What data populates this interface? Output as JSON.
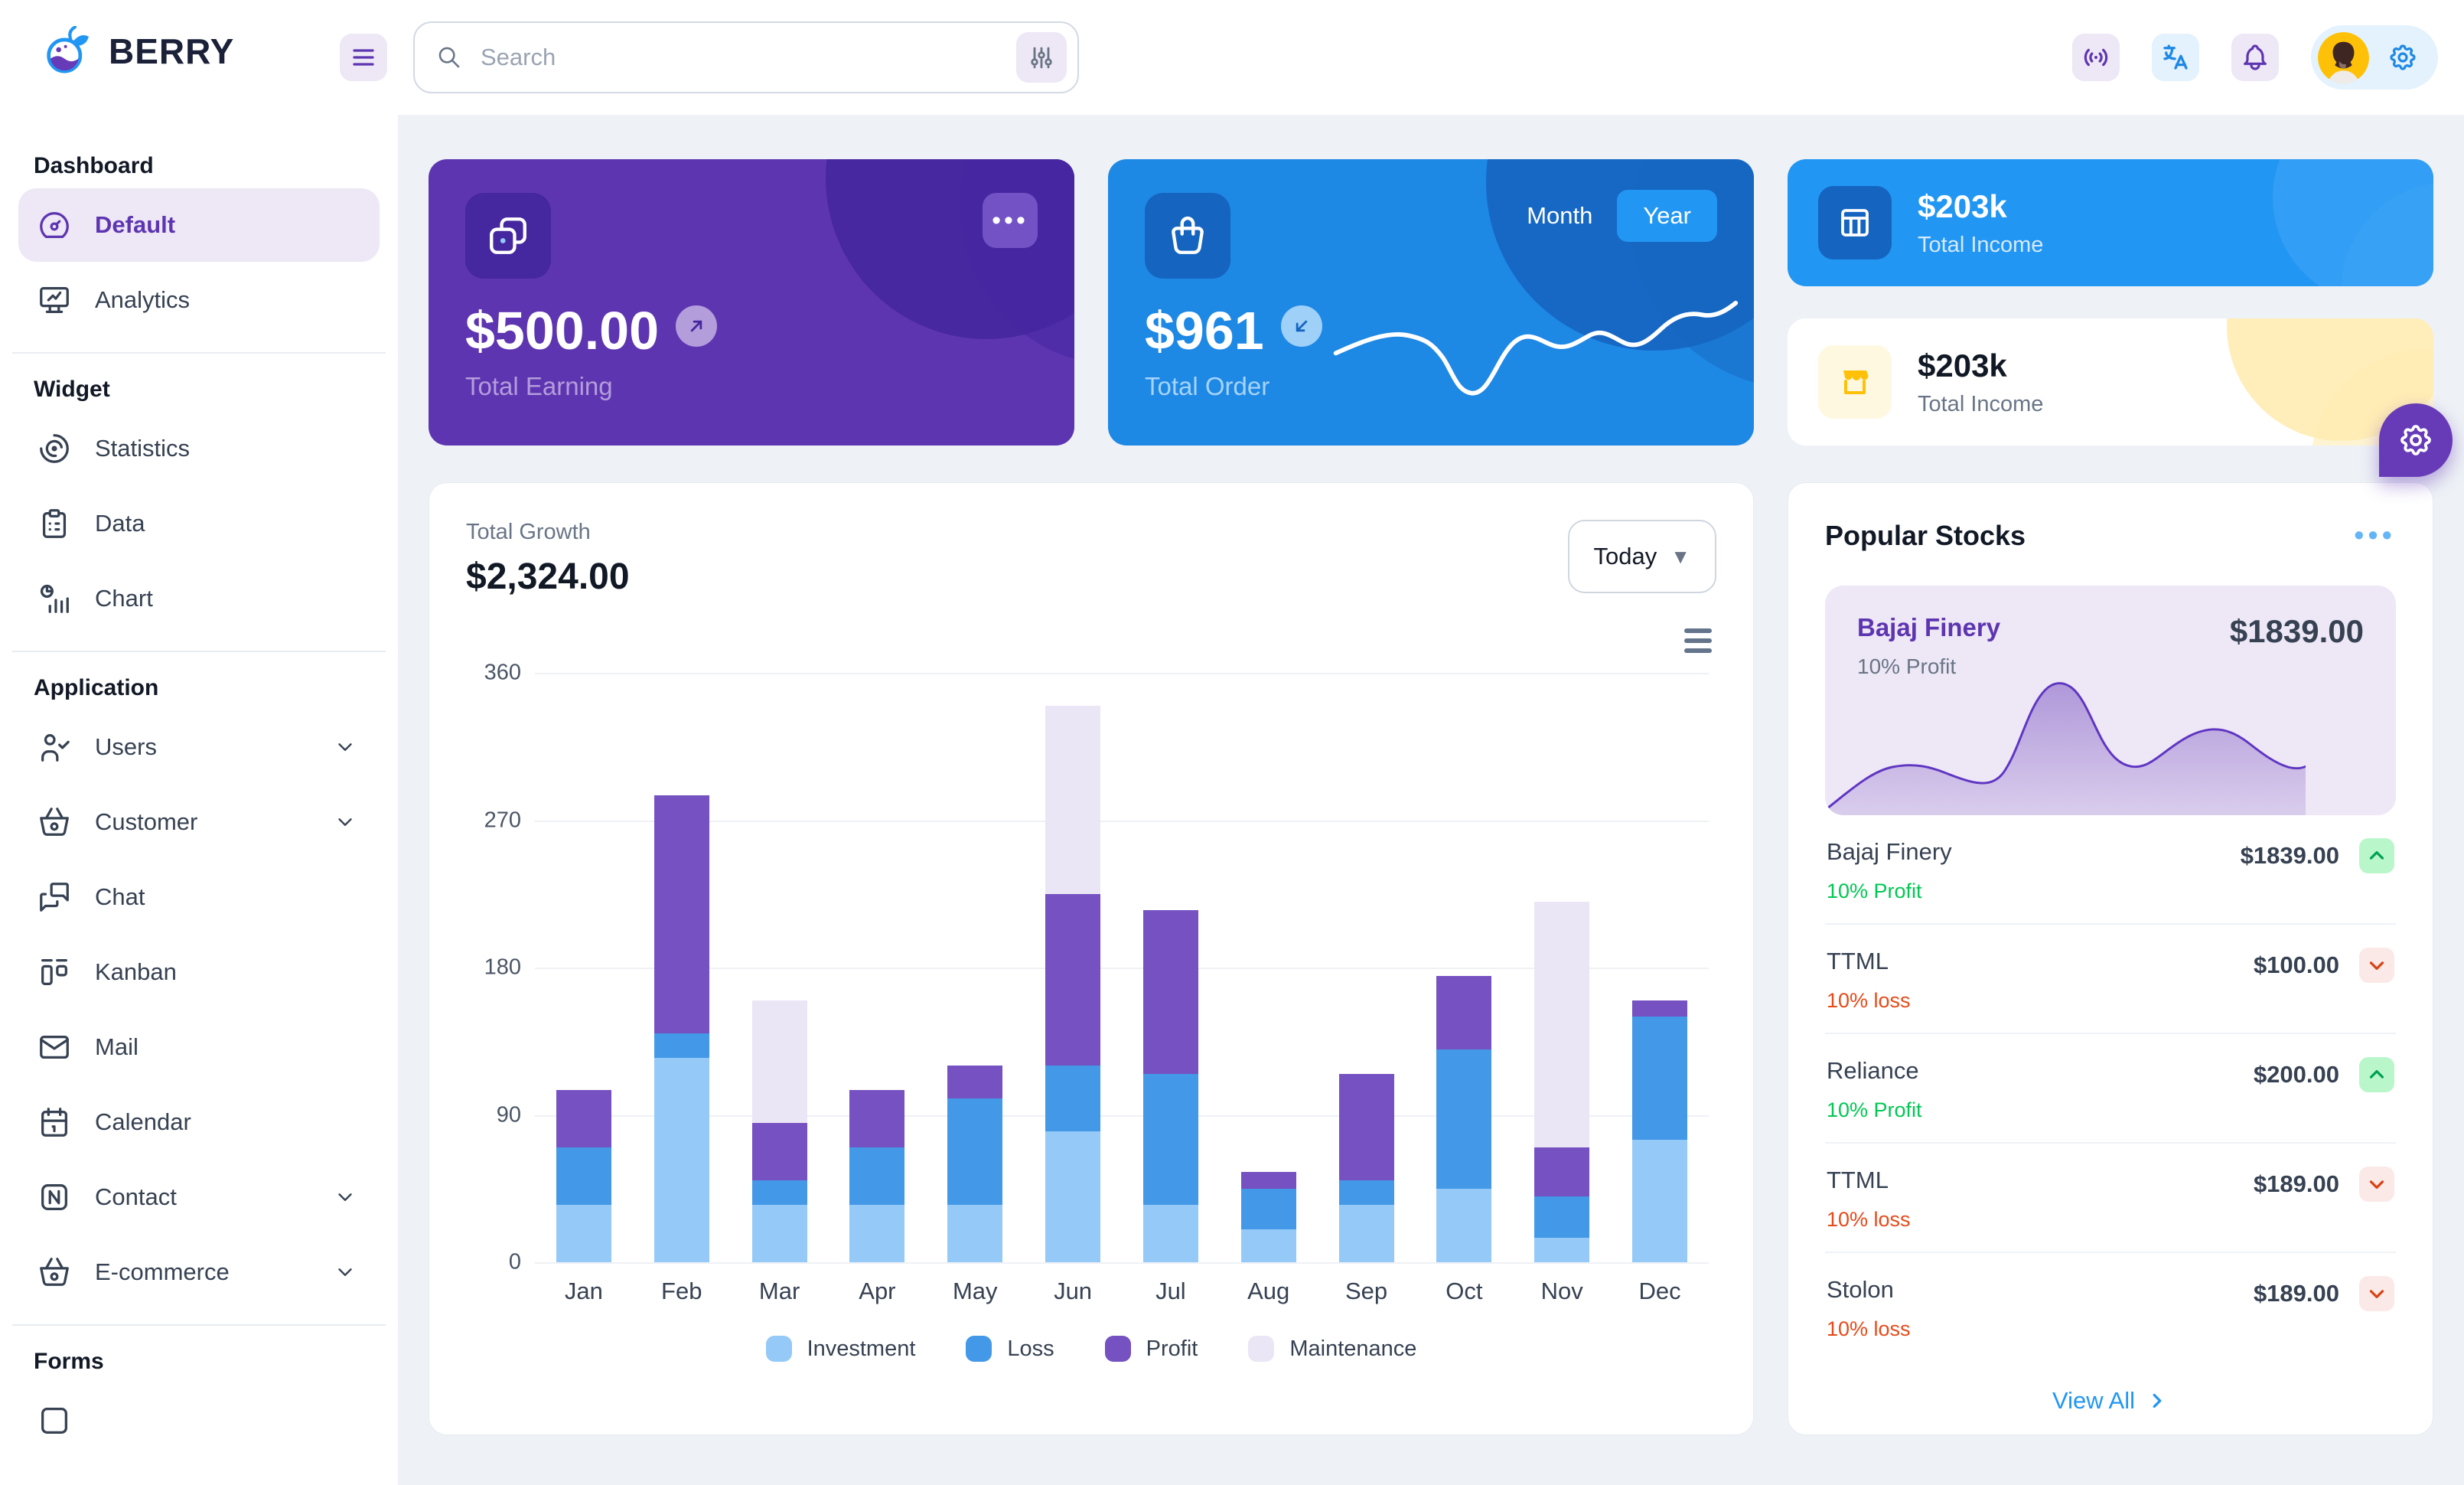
{
  "colors": {
    "primary": "#2196f3",
    "primary_dark": "#1e88e5",
    "primary_darker": "#1565c0",
    "primary_light": "#90caf9",
    "secondary": "#673ab7",
    "secondary_dark": "#5e35b1",
    "secondary_darker": "#4527a0",
    "secondary_light": "#ede7f6",
    "success": "#00c853",
    "success_light": "#b9f6ca",
    "error": "#e64a19",
    "error_light": "#fbe9e7",
    "warning": "#ffc107",
    "warning_light": "#fff8e1",
    "bg": "#eef2f6"
  },
  "header": {
    "brand": "BERRY",
    "search": {
      "placeholder": "Search"
    }
  },
  "sidebar": {
    "sections": [
      {
        "heading": "Dashboard",
        "items": [
          {
            "label": "Default",
            "icon": "dashboard-icon",
            "active": true
          },
          {
            "label": "Analytics",
            "icon": "analytics-icon"
          }
        ]
      },
      {
        "heading": "Widget",
        "items": [
          {
            "label": "Statistics",
            "icon": "statistics-icon"
          },
          {
            "label": "Data",
            "icon": "data-icon"
          },
          {
            "label": "Chart",
            "icon": "chart-icon"
          }
        ]
      },
      {
        "heading": "Application",
        "items": [
          {
            "label": "Users",
            "icon": "users-icon",
            "chevron": true
          },
          {
            "label": "Customer",
            "icon": "basket-icon",
            "chevron": true
          },
          {
            "label": "Chat",
            "icon": "chat-icon"
          },
          {
            "label": "Kanban",
            "icon": "kanban-icon"
          },
          {
            "label": "Mail",
            "icon": "mail-icon"
          },
          {
            "label": "Calendar",
            "icon": "calendar-icon"
          },
          {
            "label": "Contact",
            "icon": "contact-icon",
            "chevron": true
          },
          {
            "label": "E-commerce",
            "icon": "basket-icon",
            "chevron": true
          }
        ]
      },
      {
        "heading": "Forms",
        "items": [
          {
            "label": "",
            "icon": "components-icon",
            "partial": true
          }
        ]
      }
    ]
  },
  "cards": {
    "earning": {
      "value": "$500.00",
      "label": "Total Earning"
    },
    "order": {
      "value": "$961",
      "label": "Total Order",
      "toggle_month": "Month",
      "toggle_year": "Year",
      "selected": "Year"
    },
    "income_blue": {
      "value": "$203k",
      "label": "Total Income"
    },
    "income_light": {
      "value": "$203k",
      "label": "Total Income"
    }
  },
  "growth": {
    "title": "Total Growth",
    "amount": "$2,324.00",
    "period": "Today"
  },
  "chart_data": {
    "type": "bar",
    "stacked": true,
    "categories": [
      "Jan",
      "Feb",
      "Mar",
      "Apr",
      "May",
      "Jun",
      "Jul",
      "Aug",
      "Sep",
      "Oct",
      "Nov",
      "Dec"
    ],
    "series": [
      {
        "name": "Investment",
        "color": "#94c9f8",
        "values": [
          35,
          125,
          35,
          35,
          35,
          80,
          35,
          20,
          35,
          45,
          15,
          75
        ]
      },
      {
        "name": "Loss",
        "color": "#4398e8",
        "values": [
          35,
          15,
          15,
          35,
          65,
          40,
          80,
          25,
          15,
          85,
          25,
          75
        ]
      },
      {
        "name": "Profit",
        "color": "#7551c1",
        "values": [
          35,
          145,
          35,
          35,
          20,
          105,
          100,
          10,
          65,
          45,
          30,
          10
        ]
      },
      {
        "name": "Maintenance",
        "color": "#ebe6f5",
        "values": [
          0,
          0,
          75,
          0,
          0,
          115,
          0,
          0,
          0,
          0,
          150,
          0
        ]
      }
    ],
    "ylim": [
      0,
      360
    ],
    "yticks": [
      0,
      90,
      180,
      270,
      360
    ],
    "grid": true,
    "legend_position": "bottom"
  },
  "stocks": {
    "title": "Popular Stocks",
    "featured": {
      "name": "Bajaj Finery",
      "sub": "10% Profit",
      "value": "$1839.00"
    },
    "rows": [
      {
        "name": "Bajaj Finery",
        "sub": "10% Profit",
        "value": "$1839.00",
        "dir": "up"
      },
      {
        "name": "TTML",
        "sub": "10% loss",
        "value": "$100.00",
        "dir": "down"
      },
      {
        "name": "Reliance",
        "sub": "10% Profit",
        "value": "$200.00",
        "dir": "up"
      },
      {
        "name": "TTML",
        "sub": "10% loss",
        "value": "$189.00",
        "dir": "down"
      },
      {
        "name": "Stolon",
        "sub": "10% loss",
        "value": "$189.00",
        "dir": "down"
      }
    ],
    "view_all": "View All"
  }
}
